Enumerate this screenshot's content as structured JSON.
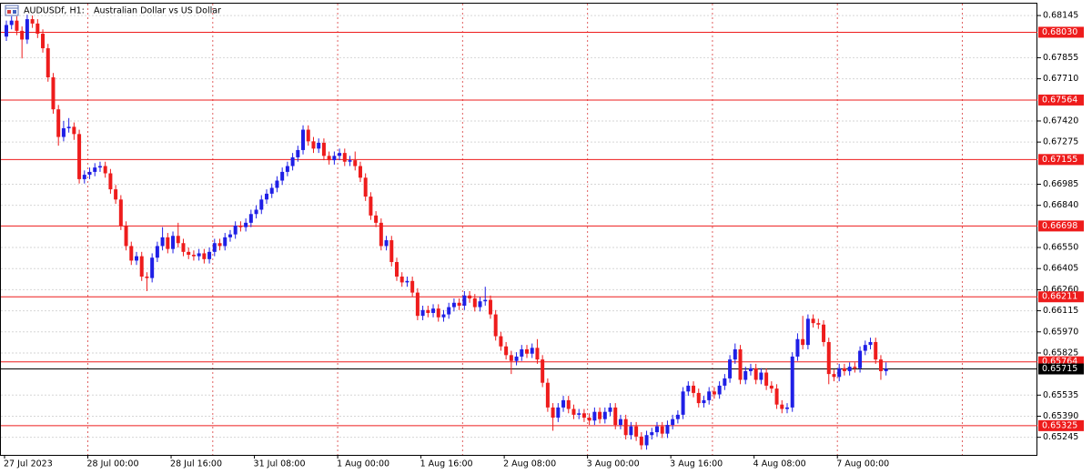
{
  "chart_data": {
    "type": "candlestick",
    "title": "AUDUSDf, H1:",
    "subtitle": "Australian Dollar vs US Dollar",
    "categories": [
      "27 Jul 2023",
      null,
      null,
      null,
      null,
      null,
      null,
      null,
      null,
      null,
      null,
      null,
      null,
      null,
      null,
      null,
      "28 Jul 00:00",
      null,
      null,
      null,
      null,
      null,
      null,
      null,
      null,
      null,
      null,
      null,
      null,
      null,
      null,
      null,
      "28 Jul 16:00",
      null,
      null,
      null,
      null,
      null,
      null,
      null,
      null,
      null,
      null,
      null,
      null,
      null,
      null,
      null,
      "31 Jul 08:00",
      null,
      null,
      null,
      null,
      null,
      null,
      null,
      null,
      null,
      null,
      null,
      null,
      null,
      null,
      null,
      "1 Aug 00:00",
      null,
      null,
      null,
      null,
      null,
      null,
      null,
      null,
      null,
      null,
      null,
      null,
      null,
      null,
      null,
      "1 Aug 16:00",
      null,
      null,
      null,
      null,
      null,
      null,
      null,
      null,
      null,
      null,
      null,
      null,
      null,
      null,
      null,
      "2 Aug 08:00",
      null,
      null,
      null,
      null,
      null,
      null,
      null,
      null,
      null,
      null,
      null,
      null,
      null,
      null,
      null,
      "3 Aug 00:00",
      null,
      null,
      null,
      null,
      null,
      null,
      null,
      null,
      null,
      null,
      null,
      null,
      null,
      null,
      null,
      "3 Aug 16:00",
      null,
      null,
      null,
      null,
      null,
      null,
      null,
      null,
      null,
      null,
      null,
      null,
      null,
      null,
      null,
      "4 Aug 08:00",
      null,
      null,
      null,
      null,
      null,
      null,
      null,
      null,
      null,
      null,
      null,
      null,
      null,
      null,
      null,
      "7 Aug 00:00",
      null,
      null,
      null,
      null,
      null,
      null,
      null,
      null,
      null
    ],
    "open": [
      0.68,
      0.6808,
      0.6811,
      0.6804,
      0.6798,
      0.6812,
      0.6809,
      0.6802,
      0.6792,
      0.6772,
      0.675,
      0.6731,
      0.6737,
      0.6738,
      0.6733,
      0.6702,
      0.6705,
      0.6707,
      0.671,
      0.6711,
      0.6706,
      0.6695,
      0.6688,
      0.667,
      0.6656,
      0.6646,
      0.6649,
      0.6635,
      0.6634,
      0.6648,
      0.6656,
      0.6662,
      0.6654,
      0.6663,
      0.6658,
      0.6652,
      0.665,
      0.6649,
      0.6651,
      0.6647,
      0.6652,
      0.6658,
      0.6656,
      0.6662,
      0.6664,
      0.667,
      0.6669,
      0.6672,
      0.6678,
      0.6681,
      0.6688,
      0.6692,
      0.6696,
      0.6701,
      0.6707,
      0.6711,
      0.6717,
      0.6722,
      0.6736,
      0.6728,
      0.6723,
      0.6727,
      0.6718,
      0.6715,
      0.6718,
      0.672,
      0.6714,
      0.6715,
      0.6711,
      0.6703,
      0.669,
      0.6677,
      0.6672,
      0.6656,
      0.666,
      0.6645,
      0.6635,
      0.6631,
      0.6632,
      0.6624,
      0.6608,
      0.6612,
      0.661,
      0.6613,
      0.6607,
      0.6609,
      0.6614,
      0.6617,
      0.6615,
      0.6622,
      0.662,
      0.6614,
      0.6618,
      0.6619,
      0.6609,
      0.6594,
      0.6587,
      0.6581,
      0.6577,
      0.658,
      0.6585,
      0.6582,
      0.6586,
      0.6578,
      0.6562,
      0.6545,
      0.6538,
      0.6545,
      0.655,
      0.6544,
      0.654,
      0.6541,
      0.6538,
      0.6536,
      0.6542,
      0.6537,
      0.6542,
      0.6545,
      0.6533,
      0.6537,
      0.6526,
      0.6532,
      0.6525,
      0.6519,
      0.6526,
      0.6528,
      0.6532,
      0.6527,
      0.6533,
      0.6537,
      0.654,
      0.6556,
      0.656,
      0.6555,
      0.6548,
      0.655,
      0.6556,
      0.6554,
      0.656,
      0.6565,
      0.6578,
      0.6585,
      0.6564,
      0.657,
      0.6572,
      0.6564,
      0.6569,
      0.656,
      0.6558,
      0.6547,
      0.6544,
      0.6545,
      0.658,
      0.6592,
      0.6588,
      0.6606,
      0.6603,
      0.6602,
      0.659,
      0.6568,
      0.6566,
      0.6572,
      0.657,
      0.6573,
      0.6572,
      0.6584,
      0.6588,
      0.659,
      0.6578,
      0.657
    ],
    "high": [
      0.6811,
      0.6814,
      0.6814,
      0.6807,
      0.6815,
      0.68145,
      0.6812,
      0.6805,
      0.6795,
      0.6775,
      0.6753,
      0.6742,
      0.6744,
      0.6741,
      0.6736,
      0.6708,
      0.671,
      0.6713,
      0.6714,
      0.6714,
      0.6709,
      0.6698,
      0.6691,
      0.6673,
      0.6659,
      0.6652,
      0.6652,
      0.6638,
      0.6651,
      0.6659,
      0.6669,
      0.6665,
      0.6666,
      0.6672,
      0.6661,
      0.6655,
      0.6653,
      0.6654,
      0.6654,
      0.6655,
      0.6661,
      0.6661,
      0.6665,
      0.6667,
      0.6673,
      0.6673,
      0.6675,
      0.6681,
      0.6684,
      0.6691,
      0.6695,
      0.6699,
      0.6704,
      0.671,
      0.6714,
      0.672,
      0.6725,
      0.6739,
      0.6739,
      0.6731,
      0.673,
      0.673,
      0.6721,
      0.6721,
      0.6723,
      0.6723,
      0.6718,
      0.6721,
      0.6714,
      0.6706,
      0.6693,
      0.668,
      0.6675,
      0.6663,
      0.6663,
      0.6648,
      0.6638,
      0.6635,
      0.6635,
      0.6627,
      0.6615,
      0.6615,
      0.6616,
      0.6616,
      0.6612,
      0.6617,
      0.662,
      0.662,
      0.6625,
      0.6625,
      0.6623,
      0.6621,
      0.6628,
      0.6622,
      0.6612,
      0.6597,
      0.659,
      0.6584,
      0.6583,
      0.6588,
      0.6588,
      0.6589,
      0.6592,
      0.6581,
      0.6565,
      0.6548,
      0.6548,
      0.6553,
      0.6553,
      0.6547,
      0.6544,
      0.6544,
      0.6541,
      0.6545,
      0.6545,
      0.6545,
      0.6548,
      0.6548,
      0.654,
      0.654,
      0.6535,
      0.6535,
      0.6528,
      0.6529,
      0.6531,
      0.6535,
      0.6535,
      0.6536,
      0.654,
      0.6543,
      0.6559,
      0.6563,
      0.6563,
      0.6558,
      0.6553,
      0.6559,
      0.6559,
      0.6563,
      0.6568,
      0.6581,
      0.6589,
      0.6588,
      0.6573,
      0.6575,
      0.6575,
      0.6572,
      0.6572,
      0.6563,
      0.6561,
      0.655,
      0.6548,
      0.6583,
      0.6596,
      0.6608,
      0.6609,
      0.6609,
      0.6606,
      0.6605,
      0.6593,
      0.6571,
      0.6575,
      0.6575,
      0.6576,
      0.6576,
      0.6587,
      0.6591,
      0.6593,
      0.6593,
      0.6581,
      0.6576
    ],
    "low": [
      0.6797,
      0.6805,
      0.6801,
      0.6785,
      0.6795,
      0.6806,
      0.6799,
      0.6789,
      0.6769,
      0.6747,
      0.6725,
      0.6728,
      0.6734,
      0.6729,
      0.6699,
      0.6699,
      0.6702,
      0.6704,
      0.6707,
      0.6703,
      0.6692,
      0.6685,
      0.6667,
      0.6653,
      0.6643,
      0.6643,
      0.6632,
      0.6625,
      0.6631,
      0.6645,
      0.6653,
      0.6651,
      0.6651,
      0.6655,
      0.6649,
      0.6647,
      0.6646,
      0.6646,
      0.6644,
      0.6644,
      0.6649,
      0.6653,
      0.6653,
      0.6659,
      0.6661,
      0.6666,
      0.6666,
      0.6669,
      0.6675,
      0.6678,
      0.6685,
      0.6689,
      0.6693,
      0.6698,
      0.6704,
      0.6708,
      0.6714,
      0.6719,
      0.6725,
      0.672,
      0.672,
      0.6715,
      0.6712,
      0.6712,
      0.6715,
      0.6711,
      0.6711,
      0.6708,
      0.67,
      0.6687,
      0.6674,
      0.6669,
      0.6653,
      0.6653,
      0.6642,
      0.6632,
      0.6628,
      0.6628,
      0.6621,
      0.6605,
      0.6605,
      0.6607,
      0.6607,
      0.6604,
      0.6604,
      0.6606,
      0.6611,
      0.6612,
      0.6612,
      0.6617,
      0.6611,
      0.6611,
      0.6615,
      0.6606,
      0.6591,
      0.6584,
      0.6578,
      0.6568,
      0.6574,
      0.6577,
      0.6579,
      0.6579,
      0.6575,
      0.6559,
      0.6542,
      0.6529,
      0.6535,
      0.6542,
      0.6541,
      0.6537,
      0.6537,
      0.6535,
      0.6533,
      0.6533,
      0.6534,
      0.6534,
      0.6539,
      0.653,
      0.653,
      0.6523,
      0.6523,
      0.6522,
      0.6516,
      0.6516,
      0.6523,
      0.6525,
      0.6524,
      0.6524,
      0.653,
      0.6534,
      0.6537,
      0.6553,
      0.6552,
      0.6545,
      0.6545,
      0.6547,
      0.6551,
      0.6551,
      0.6557,
      0.6562,
      0.6575,
      0.6561,
      0.6561,
      0.6567,
      0.6561,
      0.6561,
      0.6557,
      0.6555,
      0.6544,
      0.6541,
      0.6541,
      0.6542,
      0.6577,
      0.6585,
      0.6585,
      0.66,
      0.6599,
      0.6587,
      0.6561,
      0.6563,
      0.6563,
      0.6567,
      0.6567,
      0.6569,
      0.6569,
      0.6581,
      0.6585,
      0.6575,
      0.6564,
      0.6567
    ],
    "close": [
      0.6808,
      0.6811,
      0.6804,
      0.6798,
      0.6812,
      0.6809,
      0.6802,
      0.6792,
      0.6772,
      0.675,
      0.6731,
      0.6737,
      0.6738,
      0.6733,
      0.6702,
      0.6705,
      0.6707,
      0.671,
      0.6711,
      0.6706,
      0.6695,
      0.6688,
      0.667,
      0.6656,
      0.6646,
      0.6649,
      0.6635,
      0.6634,
      0.6648,
      0.6656,
      0.6662,
      0.6654,
      0.6663,
      0.6658,
      0.6652,
      0.665,
      0.6649,
      0.6651,
      0.6647,
      0.6652,
      0.6658,
      0.6656,
      0.6662,
      0.6664,
      0.667,
      0.6669,
      0.6672,
      0.6678,
      0.6681,
      0.6688,
      0.6692,
      0.6696,
      0.6701,
      0.6707,
      0.6711,
      0.6717,
      0.6722,
      0.6736,
      0.6728,
      0.6723,
      0.6727,
      0.6718,
      0.6715,
      0.6718,
      0.672,
      0.6714,
      0.6715,
      0.6711,
      0.6703,
      0.669,
      0.6677,
      0.6672,
      0.6656,
      0.666,
      0.6645,
      0.6635,
      0.6631,
      0.6632,
      0.6624,
      0.6608,
      0.6612,
      0.661,
      0.6613,
      0.6607,
      0.6609,
      0.6614,
      0.6617,
      0.6615,
      0.6622,
      0.662,
      0.6614,
      0.6618,
      0.6619,
      0.6609,
      0.6594,
      0.6587,
      0.6581,
      0.6577,
      0.658,
      0.6585,
      0.6582,
      0.6586,
      0.6578,
      0.6562,
      0.6545,
      0.6538,
      0.6545,
      0.655,
      0.6544,
      0.654,
      0.6541,
      0.6538,
      0.6536,
      0.6542,
      0.6537,
      0.6542,
      0.6545,
      0.6533,
      0.6537,
      0.6526,
      0.6532,
      0.6525,
      0.6519,
      0.6526,
      0.6528,
      0.6532,
      0.6527,
      0.6533,
      0.6537,
      0.654,
      0.6556,
      0.656,
      0.6555,
      0.6548,
      0.655,
      0.6556,
      0.6554,
      0.656,
      0.6565,
      0.6578,
      0.6585,
      0.6564,
      0.657,
      0.6572,
      0.6564,
      0.6569,
      0.656,
      0.6558,
      0.6547,
      0.6544,
      0.6545,
      0.658,
      0.6592,
      0.6588,
      0.6606,
      0.6603,
      0.6602,
      0.659,
      0.6568,
      0.6566,
      0.6572,
      0.657,
      0.6573,
      0.6572,
      0.6584,
      0.6588,
      0.659,
      0.6578,
      0.657,
      0.65715
    ],
    "up_color": "#1f1fe6",
    "down_color": "#ee1c1c",
    "ylim": [
      0.65124,
      0.68233
    ],
    "yticks": [
      {
        "value": 0.68145,
        "label": "0.68145"
      },
      {
        "value": 0.67855,
        "label": "0.67855"
      },
      {
        "value": 0.6771,
        "label": "0.67710"
      },
      {
        "value": 0.6742,
        "label": "0.67420"
      },
      {
        "value": 0.67275,
        "label": "0.67275"
      },
      {
        "value": 0.66985,
        "label": "0.66985"
      },
      {
        "value": 0.6684,
        "label": "0.66840"
      },
      {
        "value": 0.6655,
        "label": "0.66550"
      },
      {
        "value": 0.66405,
        "label": "0.66405"
      },
      {
        "value": 0.6626,
        "label": "0.66260"
      },
      {
        "value": 0.66115,
        "label": "0.66115"
      },
      {
        "value": 0.6597,
        "label": "0.65970"
      },
      {
        "value": 0.65825,
        "label": "0.65825"
      },
      {
        "value": 0.65535,
        "label": "0.65535"
      },
      {
        "value": 0.6539,
        "label": "0.65390"
      },
      {
        "value": 0.65245,
        "label": "0.65245"
      }
    ],
    "grid": true,
    "levels": [
      {
        "value": 0.6803,
        "label": "0.68030"
      },
      {
        "value": 0.67564,
        "label": "0.67564"
      },
      {
        "value": 0.67155,
        "label": "0.67155"
      },
      {
        "value": 0.66698,
        "label": "0.66698"
      },
      {
        "value": 0.66211,
        "label": "0.66211"
      },
      {
        "value": 0.65764,
        "label": "0.65764"
      },
      {
        "value": 0.65325,
        "label": "0.65325"
      }
    ],
    "level_color": "#ee1c1c",
    "current": {
      "value": 0.65715,
      "label": "0.65715"
    },
    "current_color": "#000000"
  }
}
